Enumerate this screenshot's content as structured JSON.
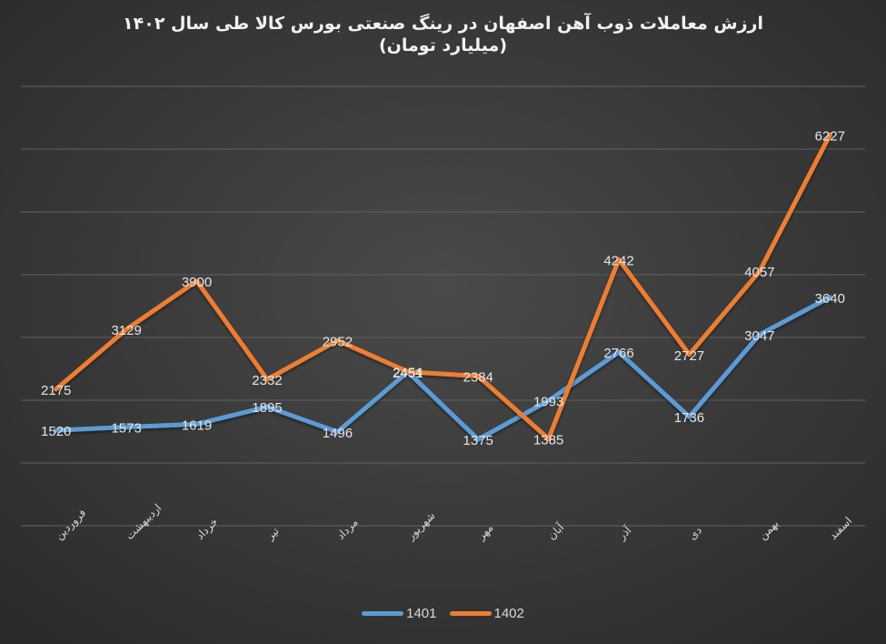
{
  "title": {
    "line1": "ارزش معاملات ذوب آهن اصفهان در رینگ صنعتی بورس کالا طی سال ۱۴۰۲",
    "line2": "(میلیارد تومان)"
  },
  "colors": {
    "series_1401": "#5B9BD5",
    "series_1402": "#ED7D31",
    "gridline": "#5a5a5a",
    "text": "#d9d9d9"
  },
  "legend": [
    {
      "label": "1401",
      "color": "#5B9BD5"
    },
    {
      "label": "1402",
      "color": "#ED7D31"
    }
  ],
  "chart_data": {
    "type": "line",
    "title": "ارزش معاملات ذوب آهن اصفهان در رینگ صنعتی بورس کالا طی سال ۱۴۰۲ (میلیارد تومان)",
    "xlabel": "",
    "ylabel": "",
    "categories": [
      "فروردین",
      "اردیبهشت",
      "خرداد",
      "تیر",
      "مرداد",
      "شهریور",
      "مهر",
      "آبان",
      "آذر",
      "دی",
      "بهمن",
      "اسفند"
    ],
    "series": [
      {
        "name": "1401",
        "values": [
          1520,
          1573,
          1619,
          1895,
          1496,
          2451,
          1375,
          1993,
          2766,
          1736,
          3047,
          3640
        ]
      },
      {
        "name": "1402",
        "values": [
          2175,
          3129,
          3900,
          2332,
          2952,
          2454,
          2384,
          1385,
          4242,
          2727,
          4057,
          6227
        ]
      }
    ],
    "ylim": [
      0,
      7000
    ],
    "ytick_step": 1000,
    "y_axis_labels_visible": false,
    "grid": true,
    "data_labels": true,
    "legend_position": "bottom"
  }
}
